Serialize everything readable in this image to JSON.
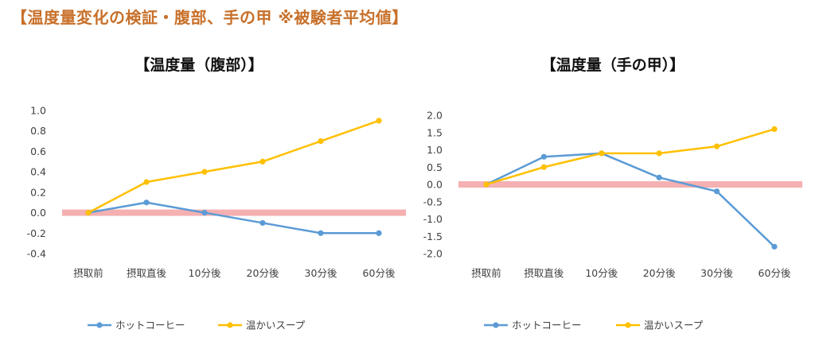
{
  "page": {
    "title": "【温度量変化の検証・腹部、手の甲 ※被験者平均値】"
  },
  "colors": {
    "title": "#c8702a",
    "coffee": "#5b9bd5",
    "soup": "#ffc000",
    "baseline_band": "#f4a7a9"
  },
  "chart_data": [
    {
      "type": "line",
      "title": "【温度量（腹部）】",
      "categories": [
        "摂取前",
        "摂取直後",
        "10分後",
        "20分後",
        "30分後",
        "60分後"
      ],
      "ylim": [
        -0.4,
        1.0
      ],
      "yticks": [
        "1.0",
        "0.8",
        "0.6",
        "0.4",
        "0.2",
        "0.0",
        "-0.2",
        "-0.4"
      ],
      "grid": false,
      "legend": "bottom",
      "series": [
        {
          "name": "ホットコーヒー",
          "values": [
            0.0,
            0.1,
            0.0,
            -0.1,
            -0.2,
            -0.2
          ]
        },
        {
          "name": "温かいスープ",
          "values": [
            0.0,
            0.3,
            0.4,
            0.5,
            0.7,
            0.9
          ]
        }
      ]
    },
    {
      "type": "line",
      "title": "【温度量（手の甲）】",
      "categories": [
        "摂取前",
        "摂取直後",
        "10分後",
        "20分後",
        "30分後",
        "60分後"
      ],
      "ylim": [
        -2.0,
        2.0
      ],
      "yticks": [
        "2.0",
        "1.5",
        "1.0",
        "0.5",
        "0.0",
        "-0.5",
        "-1.0",
        "-1.5",
        "-2.0"
      ],
      "grid": false,
      "legend": "bottom",
      "series": [
        {
          "name": "ホットコーヒー",
          "values": [
            0.0,
            0.8,
            0.9,
            0.2,
            -0.2,
            -1.8
          ]
        },
        {
          "name": "温かいスープ",
          "values": [
            0.0,
            0.5,
            0.9,
            0.9,
            1.1,
            1.6
          ]
        }
      ]
    }
  ]
}
